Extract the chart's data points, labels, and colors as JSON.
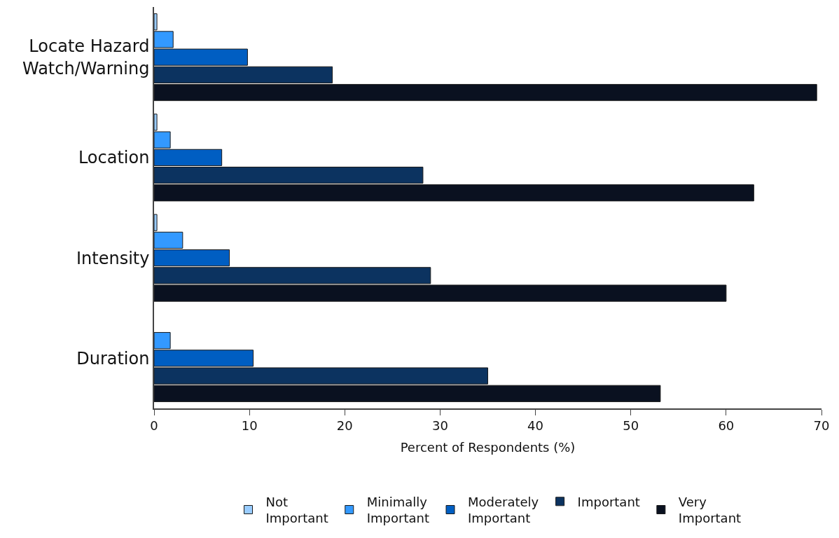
{
  "chart_data": {
    "type": "bar",
    "orientation": "horizontal",
    "xlabel": "Percent of Respondents (%)",
    "categories": [
      "Locate Hazard Watch/Warning",
      "Location",
      "Intensity",
      "Duration"
    ],
    "series": [
      {
        "name": "Not Important",
        "color": "#99ccff",
        "values": [
          0.3,
          0.3,
          0.3,
          null
        ]
      },
      {
        "name": "Minimally Important",
        "color": "#3399ff",
        "values": [
          2.0,
          1.7,
          3.0,
          1.7
        ]
      },
      {
        "name": "Moderately Important",
        "color": "#005ec2",
        "values": [
          9.8,
          7.1,
          7.9,
          10.4
        ]
      },
      {
        "name": "Important",
        "color": "#0c3360",
        "values": [
          18.7,
          28.2,
          29.0,
          35.0
        ]
      },
      {
        "name": "Very Important",
        "color": "#0a1120",
        "values": [
          69.5,
          62.9,
          60.0,
          53.1
        ]
      }
    ],
    "xlim": [
      0,
      70
    ],
    "xticks": [
      0,
      10,
      20,
      30,
      40,
      50,
      60,
      70
    ],
    "legend": "bottom"
  }
}
